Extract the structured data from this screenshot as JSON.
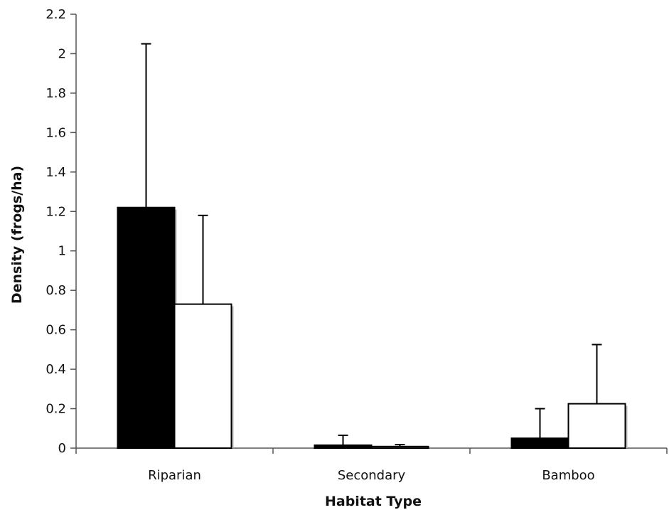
{
  "chart_data": {
    "type": "bar",
    "title": "",
    "xlabel": "Habitat Type",
    "ylabel": "Density (frogs/ha)",
    "categories": [
      "Riparian",
      "Secondary",
      "Bamboo"
    ],
    "ylim": [
      0,
      2.2
    ],
    "yticks": [
      "0",
      "0.2",
      "0.4",
      "0.6",
      "0.8",
      "1",
      "1.2",
      "1.4",
      "1.6",
      "1.8",
      "2",
      "2.2"
    ],
    "grid": false,
    "legend": "none",
    "series": [
      {
        "values": [
          1.22,
          0.015,
          0.05
        ],
        "errors": [
          0.83,
          0.05,
          0.15
        ],
        "color": "#000000"
      },
      {
        "values": [
          0.73,
          0.008,
          0.225
        ],
        "errors": [
          0.45,
          0.01,
          0.3
        ],
        "color": "#ffffff"
      }
    ]
  }
}
